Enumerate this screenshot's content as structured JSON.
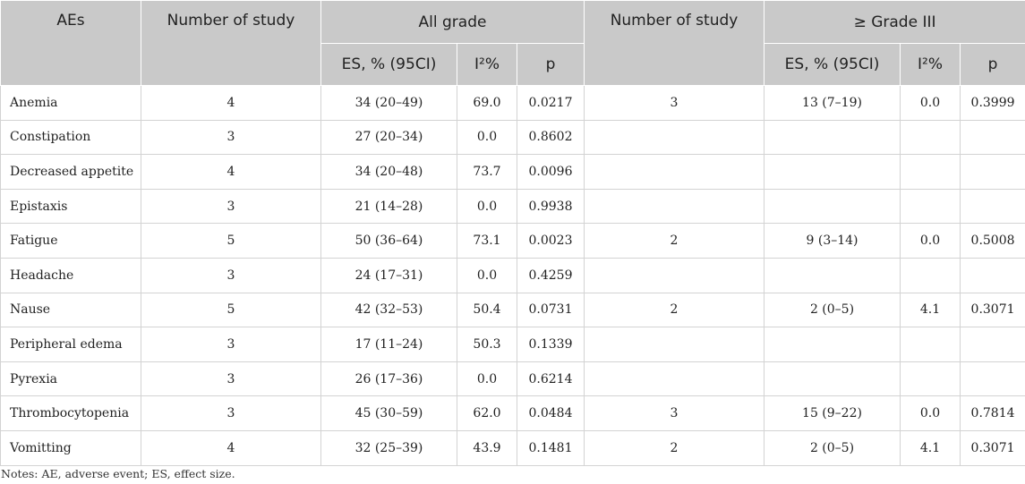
{
  "header": {
    "aes": "AEs",
    "number_of_study_all": "Number of study",
    "all_grade": "All grade",
    "number_of_study_g3": "Number of study",
    "grade_iii": "≥ Grade III",
    "es_all": "ES, % (95CI)",
    "i2_all": "I²%",
    "p_all": "p",
    "es_g3": "ES, % (95CI)",
    "i2_g3": "I²%",
    "p_g3": "p"
  },
  "rows": [
    {
      "ae": "Anemia",
      "n_all": "4",
      "es_all": "34 (20–49)",
      "i2_all": "69.0",
      "p_all": "0.0217",
      "n_g3": "3",
      "es_g3": "13 (7–19)",
      "i2_g3": "0.0",
      "p_g3": "0.3999"
    },
    {
      "ae": "Constipation",
      "n_all": "3",
      "es_all": "27 (20–34)",
      "i2_all": "0.0",
      "p_all": "0.8602",
      "n_g3": "",
      "es_g3": "",
      "i2_g3": "",
      "p_g3": ""
    },
    {
      "ae": "Decreased appetite",
      "n_all": "4",
      "es_all": "34 (20–48)",
      "i2_all": "73.7",
      "p_all": "0.0096",
      "n_g3": "",
      "es_g3": "",
      "i2_g3": "",
      "p_g3": ""
    },
    {
      "ae": "Epistaxis",
      "n_all": "3",
      "es_all": "21 (14–28)",
      "i2_all": "0.0",
      "p_all": "0.9938",
      "n_g3": "",
      "es_g3": "",
      "i2_g3": "",
      "p_g3": ""
    },
    {
      "ae": "Fatigue",
      "n_all": "5",
      "es_all": "50 (36–64)",
      "i2_all": "73.1",
      "p_all": "0.0023",
      "n_g3": "2",
      "es_g3": "9 (3–14)",
      "i2_g3": "0.0",
      "p_g3": "0.5008"
    },
    {
      "ae": "Headache",
      "n_all": "3",
      "es_all": "24 (17–31)",
      "i2_all": "0.0",
      "p_all": "0.4259",
      "n_g3": "",
      "es_g3": "",
      "i2_g3": "",
      "p_g3": ""
    },
    {
      "ae": "Nause",
      "n_all": "5",
      "es_all": "42 (32–53)",
      "i2_all": "50.4",
      "p_all": "0.0731",
      "n_g3": "2",
      "es_g3": "2 (0–5)",
      "i2_g3": "4.1",
      "p_g3": "0.3071"
    },
    {
      "ae": "Peripheral edema",
      "n_all": "3",
      "es_all": "17 (11–24)",
      "i2_all": "50.3",
      "p_all": "0.1339",
      "n_g3": "",
      "es_g3": "",
      "i2_g3": "",
      "p_g3": ""
    },
    {
      "ae": "Pyrexia",
      "n_all": "3",
      "es_all": "26 (17–36)",
      "i2_all": "0.0",
      "p_all": "0.6214",
      "n_g3": "",
      "es_g3": "",
      "i2_g3": "",
      "p_g3": ""
    },
    {
      "ae": "Thrombocytopenia",
      "n_all": "3",
      "es_all": "45 (30–59)",
      "i2_all": "62.0",
      "p_all": "0.0484",
      "n_g3": "3",
      "es_g3": "15 (9–22)",
      "i2_g3": "0.0",
      "p_g3": "0.7814"
    },
    {
      "ae": "Vomitting",
      "n_all": "4",
      "es_all": "32 (25–39)",
      "i2_all": "43.9",
      "p_all": "0.1481",
      "n_g3": "2",
      "es_g3": "2 (0–5)",
      "i2_g3": "4.1",
      "p_g3": "0.3071"
    }
  ],
  "notes": "Notes: AE, adverse event; ES, effect size.",
  "colors": {
    "header_bg": "#c9c9c9",
    "border": "#d3d3d3",
    "text": "#222222"
  }
}
